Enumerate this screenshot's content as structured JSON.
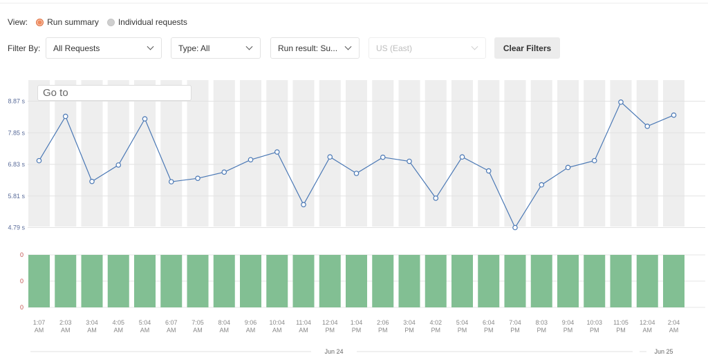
{
  "view": {
    "label": "View:",
    "options": [
      {
        "label": "Run summary",
        "selected": true
      },
      {
        "label": "Individual requests",
        "selected": false
      }
    ]
  },
  "filters": {
    "label": "Filter By:",
    "requests": "All Requests",
    "type": "Type: All",
    "run_result": "Run result: Su...",
    "region": "US (East)",
    "clear_label": "Clear Filters"
  },
  "goto": {
    "placeholder": "Go to"
  },
  "colors": {
    "line": "#4a78b5",
    "band": "#eeeeee",
    "bar": "#82bf93",
    "radio_on": "#f08a5d"
  },
  "chart_data": {
    "type": "line",
    "y_ticks": [
      "8.87 s",
      "7.85 s",
      "6.83 s",
      "5.81 s",
      "4.79 s"
    ],
    "y_tick_values": [
      8.87,
      7.85,
      6.83,
      5.81,
      4.79
    ],
    "ylim": [
      4.79,
      8.87
    ],
    "x": [
      [
        "1:07",
        "AM"
      ],
      [
        "2:03",
        "AM"
      ],
      [
        "3:04",
        "AM"
      ],
      [
        "4:05",
        "AM"
      ],
      [
        "5:04",
        "AM"
      ],
      [
        "6:07",
        "AM"
      ],
      [
        "7:05",
        "AM"
      ],
      [
        "8:04",
        "AM"
      ],
      [
        "9:06",
        "AM"
      ],
      [
        "10:04",
        "AM"
      ],
      [
        "11:04",
        "AM"
      ],
      [
        "12:04",
        "PM"
      ],
      [
        "1:04",
        "PM"
      ],
      [
        "2:06",
        "PM"
      ],
      [
        "3:04",
        "PM"
      ],
      [
        "4:02",
        "PM"
      ],
      [
        "5:04",
        "PM"
      ],
      [
        "6:04",
        "PM"
      ],
      [
        "7:04",
        "PM"
      ],
      [
        "8:03",
        "PM"
      ],
      [
        "9:04",
        "PM"
      ],
      [
        "10:03",
        "PM"
      ],
      [
        "11:05",
        "PM"
      ],
      [
        "12:04",
        "AM"
      ],
      [
        "2:04",
        "AM"
      ]
    ],
    "values": [
      6.95,
      8.38,
      6.28,
      6.81,
      8.3,
      6.27,
      6.38,
      6.58,
      6.98,
      7.23,
      5.53,
      7.07,
      6.54,
      7.06,
      6.93,
      5.74,
      7.07,
      6.62,
      4.79,
      6.17,
      6.73,
      6.95,
      8.84,
      8.06,
      8.42
    ],
    "bar_ticks": [
      "0",
      "0",
      "0"
    ],
    "bar_values": [
      0,
      0,
      0,
      0,
      0,
      0,
      0,
      0,
      0,
      0,
      0,
      0,
      0,
      0,
      0,
      0,
      0,
      0,
      0,
      0,
      0,
      0,
      0,
      0,
      0
    ],
    "dates": [
      "Jun 24",
      "Jun 25"
    ]
  }
}
